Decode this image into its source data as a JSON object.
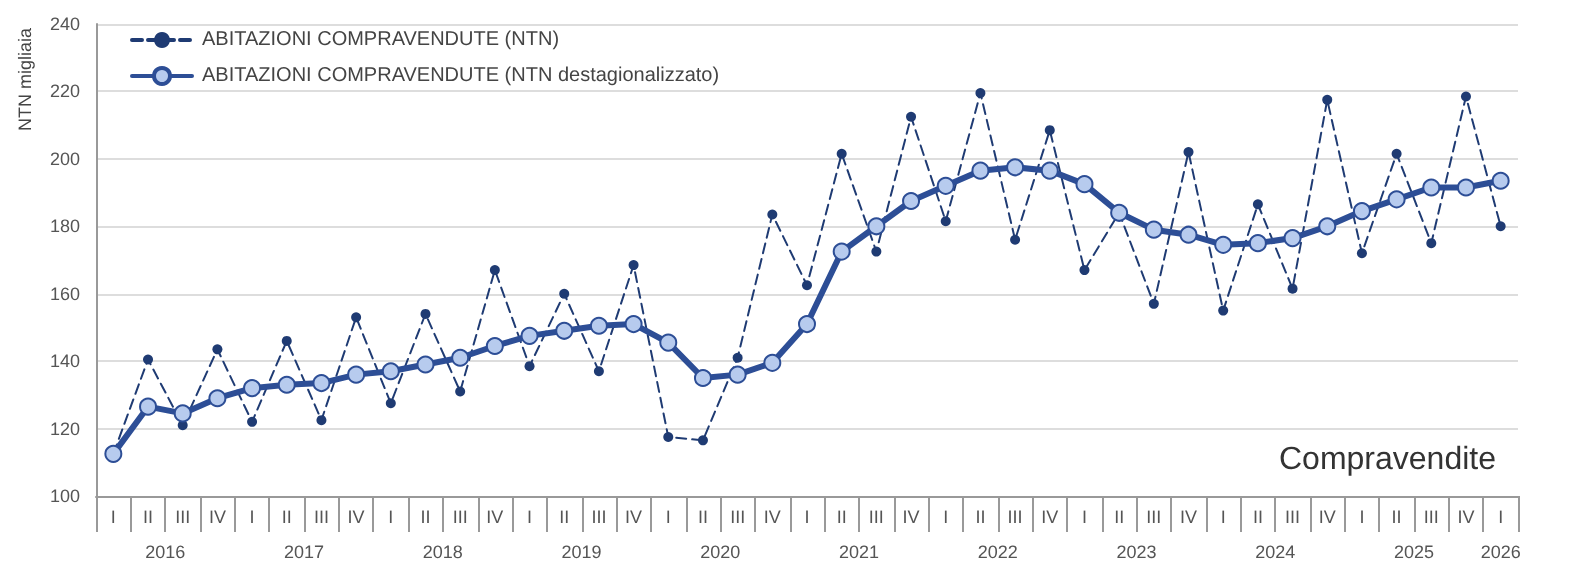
{
  "chart_data": {
    "type": "line",
    "title": "Compravendite",
    "ylabel": "NTN migliaia",
    "categories": [
      "I",
      "II",
      "III",
      "IV",
      "I",
      "II",
      "III",
      "IV",
      "I",
      "II",
      "III",
      "IV",
      "I",
      "II",
      "III",
      "IV",
      "I",
      "II",
      "III",
      "IV",
      "I",
      "II",
      "III",
      "IV",
      "I",
      "II",
      "III",
      "IV",
      "I",
      "II",
      "III",
      "IV",
      "I",
      "II",
      "III",
      "IV",
      "I",
      "II",
      "III",
      "IV",
      "I"
    ],
    "annotations": [
      "2016",
      "2017",
      "2018",
      "2019",
      "2020",
      "2021",
      "2022",
      "2023",
      "2024",
      "2025",
      "2026"
    ],
    "series": [
      {
        "name": "ABITAZIONI COMPRAVENDUTE (NTN)",
        "color": "#1f3b73",
        "line_style": "dashed",
        "marker": "circle",
        "values": [
          112.5,
          140.5,
          121,
          143.5,
          122,
          146,
          122.5,
          153,
          127.5,
          154,
          131,
          167,
          138.5,
          160,
          137,
          168.5,
          117.5,
          116.5,
          141,
          183.5,
          162.5,
          201.5,
          172.5,
          212.5,
          181.5,
          219.5,
          176,
          208.5,
          167,
          184,
          157,
          202,
          155,
          186.5,
          161.5,
          217.5,
          172,
          201.5,
          175,
          218.5,
          180
        ]
      },
      {
        "name": "ABITAZIONI COMPRAVENDUTE (NTN destagionalizzato)",
        "color": "#2d4e96",
        "line_style": "solid",
        "marker": "circle",
        "values": [
          112.5,
          126.5,
          124.5,
          129,
          132,
          133,
          133.5,
          136,
          137,
          139,
          141,
          144.5,
          147.5,
          149,
          150.5,
          151,
          145.5,
          135,
          136,
          139.5,
          151,
          172.5,
          180,
          187.5,
          192,
          196.5,
          197.5,
          196.5,
          192.5,
          184,
          179,
          177.5,
          174.5,
          175,
          176.5,
          180,
          184.5,
          188,
          191.5,
          191.5,
          193.5
        ]
      }
    ],
    "ylim": [
      100,
      240
    ],
    "yticks": [
      100,
      120,
      140,
      160,
      180,
      200,
      220,
      240
    ],
    "grid": "y",
    "legend": "top left"
  }
}
